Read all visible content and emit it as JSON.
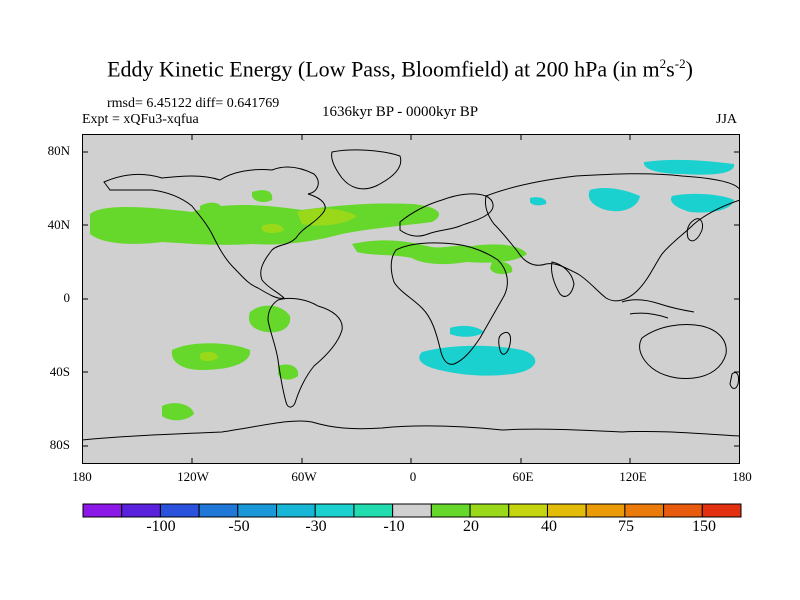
{
  "title": {
    "main": "Eddy Kinetic Energy (Low Pass, Bloomfield) at 200 hPa (in m",
    "sup1": "2",
    "mid": "s",
    "sup2": "-2",
    "end": ")"
  },
  "stats": "rmsd= 6.45122 diff= 0.641769",
  "expt": "Expt = xQFu3-xqfua",
  "period": "1636kyr BP - 0000kyr BP",
  "season": "JJA",
  "lat_labels": [
    "80N",
    "40N",
    "0",
    "40S",
    "80S"
  ],
  "lon_labels": [
    "180",
    "120W",
    "60W",
    "0",
    "60E",
    "120E",
    "180"
  ],
  "colorbar": {
    "colors": [
      "#8c18e8",
      "#5a22dd",
      "#2a52dc",
      "#1f78d8",
      "#1b98d8",
      "#17b6d6",
      "#1bd1cf",
      "#20dcae",
      "#d0d0d0",
      "#66d82c",
      "#9ad81a",
      "#c4d40e",
      "#e2bc08",
      "#eb9a08",
      "#ea7a0a",
      "#e85a0e",
      "#e23010"
    ],
    "labels": [
      "-100",
      "-50",
      "-30",
      "-10",
      "20",
      "40",
      "75",
      "150"
    ]
  },
  "map_colors": {
    "ocean": "#d0d0d0",
    "green": "#66d82c",
    "yellow_green": "#9ad81a",
    "olive": "#c4d40e",
    "cyan": "#1bd1cf",
    "teal": "#20dcae",
    "coast": "#000000"
  }
}
